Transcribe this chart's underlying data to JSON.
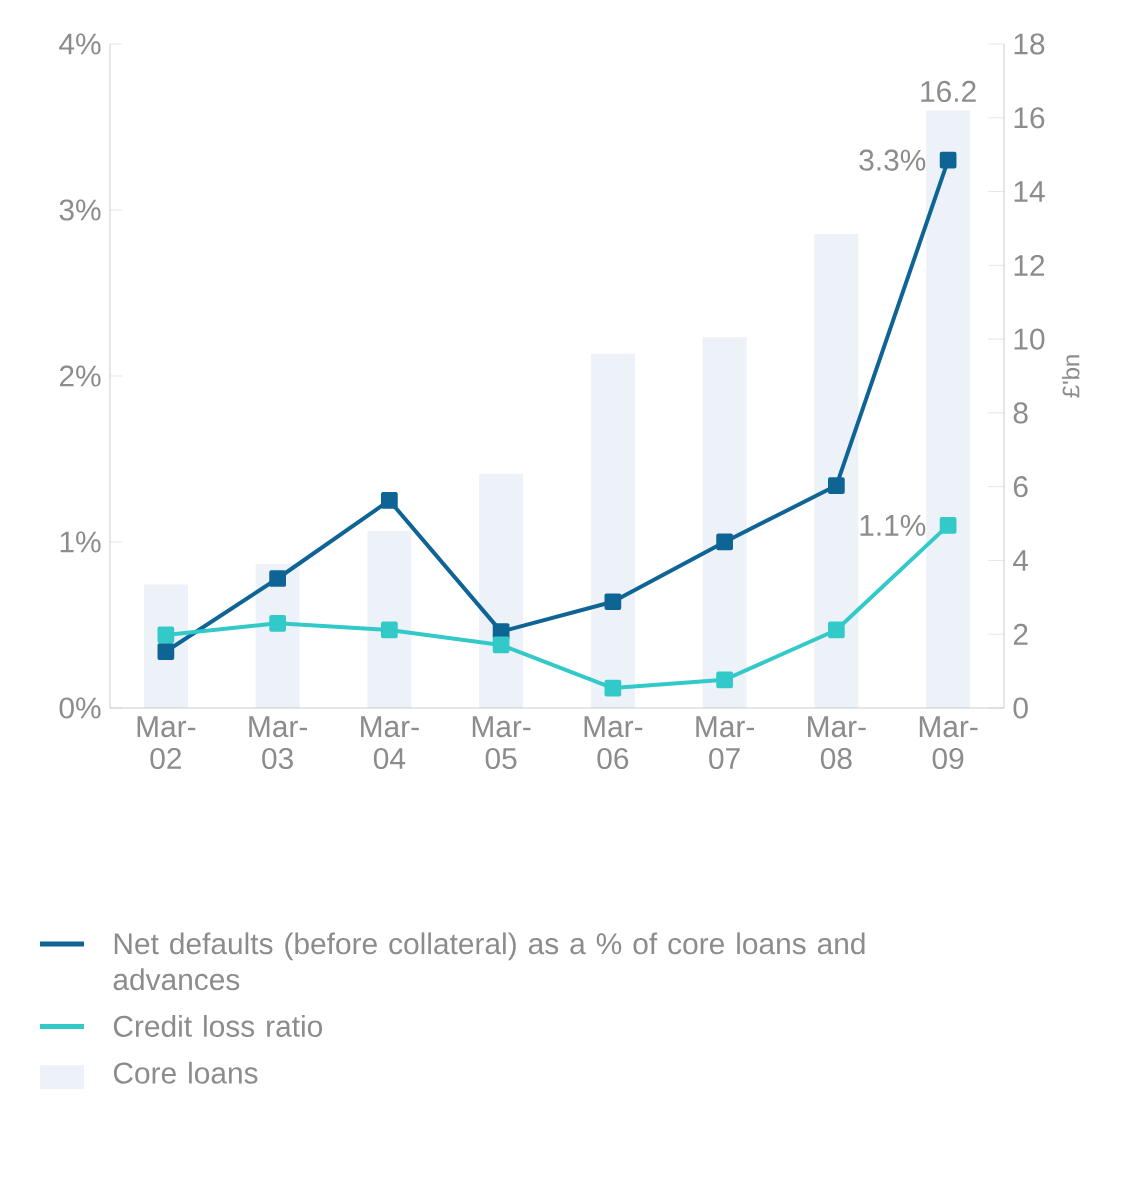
{
  "chart_data": {
    "type": "line",
    "categories": [
      "Mar-02",
      "Mar-03",
      "Mar-04",
      "Mar-05",
      "Mar-06",
      "Mar-07",
      "Mar-08",
      "Mar-09"
    ],
    "y2label": "£'bn",
    "series": [
      {
        "name": "Net defaults (before collateral) as a % of core loans and advances",
        "color": "#0f6496",
        "values": [
          0.34,
          0.78,
          1.25,
          0.46,
          0.64,
          1.0,
          1.34,
          3.3
        ],
        "value_labels": [
          null,
          null,
          null,
          null,
          null,
          null,
          null,
          "3.3%"
        ]
      },
      {
        "name": "Credit loss ratio",
        "color": "#33c9c9",
        "values": [
          0.44,
          0.51,
          0.47,
          0.38,
          0.12,
          0.17,
          0.47,
          1.1
        ],
        "value_labels": [
          null,
          null,
          null,
          null,
          null,
          null,
          null,
          "1.1%"
        ]
      },
      {
        "name": "Core loans",
        "type": "bar",
        "axis": "y2",
        "color": "#edf2f8",
        "values": [
          3.35,
          3.9,
          4.8,
          6.35,
          9.6,
          10.05,
          12.85,
          16.2
        ],
        "value_labels": [
          null,
          null,
          null,
          null,
          null,
          null,
          null,
          "16.2"
        ]
      }
    ],
    "ylim": [
      0,
      4
    ],
    "yticks": [
      {
        "value": 0,
        "label": "0%"
      },
      {
        "value": 1,
        "label": "1%"
      },
      {
        "value": 2,
        "label": "2%"
      },
      {
        "value": 3,
        "label": "3%"
      },
      {
        "value": 4,
        "label": "4%"
      }
    ],
    "y2lim": [
      0,
      18
    ],
    "y2ticks": [
      0,
      2,
      4,
      6,
      8,
      10,
      12,
      14,
      16,
      18
    ],
    "legend": "bottom",
    "marker": "square",
    "line_style": "solid"
  }
}
